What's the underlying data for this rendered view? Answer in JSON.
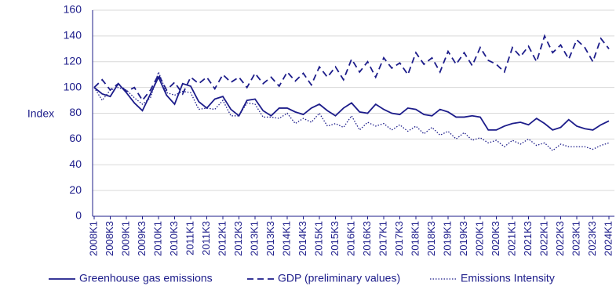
{
  "chart_data": {
    "type": "line",
    "y_label": "Index",
    "categories": [
      "2008K1",
      null,
      "2008K3",
      null,
      "2009K1",
      null,
      "2009K3",
      null,
      "2010K1",
      null,
      "2010K3",
      null,
      "2011K1",
      null,
      "2011K3",
      null,
      "2012K1",
      null,
      "2012K3",
      null,
      "2013K1",
      null,
      "2013K3",
      null,
      "2014K1",
      null,
      "2014K3",
      null,
      "2015K1",
      null,
      "2015K3",
      null,
      "2016K1",
      null,
      "2016K3",
      null,
      "2017K1",
      null,
      "2017K3",
      null,
      "2018K1",
      null,
      "2018K3",
      null,
      "2019K1",
      null,
      "2019K3",
      null,
      "2020K1",
      null,
      "2020K3",
      null,
      "2021K1",
      null,
      "2021K3",
      null,
      "2022K1",
      null,
      "2022K3",
      null,
      "2023K1",
      null,
      "2023K3",
      null,
      "2024K1"
    ],
    "series": [
      {
        "name": "Greenhouse gas emissions",
        "color": "#1c1c8a",
        "style": "solid",
        "values": [
          100,
          95,
          93,
          103,
          96,
          88,
          82,
          95,
          108,
          94,
          87,
          103,
          101,
          89,
          84,
          91,
          93,
          83,
          78,
          90,
          91,
          82,
          78,
          84,
          84,
          81,
          79,
          84,
          87,
          82,
          78,
          84,
          88,
          81,
          80,
          87,
          83,
          80,
          79,
          84,
          83,
          79,
          78,
          83,
          81,
          77,
          77,
          78,
          77,
          67,
          67,
          70,
          72,
          73,
          71,
          76,
          72,
          67,
          69,
          75,
          70,
          68,
          67,
          71,
          74
        ]
      },
      {
        "name": "GDP (preliminary values)",
        "color": "#1c1c8a",
        "style": "dashed",
        "values": [
          100,
          106,
          98,
          103,
          97,
          100,
          90,
          98,
          110,
          98,
          104,
          95,
          108,
          103,
          108,
          99,
          110,
          104,
          108,
          100,
          111,
          103,
          108,
          101,
          112,
          105,
          111,
          102,
          116,
          108,
          116,
          106,
          122,
          112,
          120,
          108,
          123,
          115,
          119,
          110,
          127,
          118,
          123,
          112,
          128,
          118,
          127,
          117,
          131,
          121,
          118,
          112,
          131,
          124,
          132,
          120,
          140,
          127,
          133,
          122,
          137,
          131,
          120,
          138,
          130
        ]
      },
      {
        "name": "Emissions Intensity",
        "color": "#1c1c8a",
        "style": "dotted",
        "values": [
          100,
          90,
          98,
          100,
          98,
          92,
          87,
          92,
          112,
          96,
          94,
          97,
          96,
          83,
          84,
          83,
          90,
          78,
          78,
          88,
          87,
          77,
          77,
          76,
          80,
          72,
          76,
          73,
          80,
          70,
          72,
          69,
          78,
          67,
          73,
          70,
          72,
          67,
          71,
          66,
          70,
          64,
          69,
          63,
          66,
          60,
          65,
          59,
          61,
          57,
          59,
          54,
          59,
          56,
          60,
          55,
          57,
          51,
          56,
          54,
          54,
          54,
          52,
          55,
          57
        ]
      }
    ],
    "ylim": [
      0,
      160
    ],
    "yticks": [
      0,
      20,
      40,
      60,
      80,
      100,
      120,
      140,
      160
    ],
    "grid": true
  }
}
